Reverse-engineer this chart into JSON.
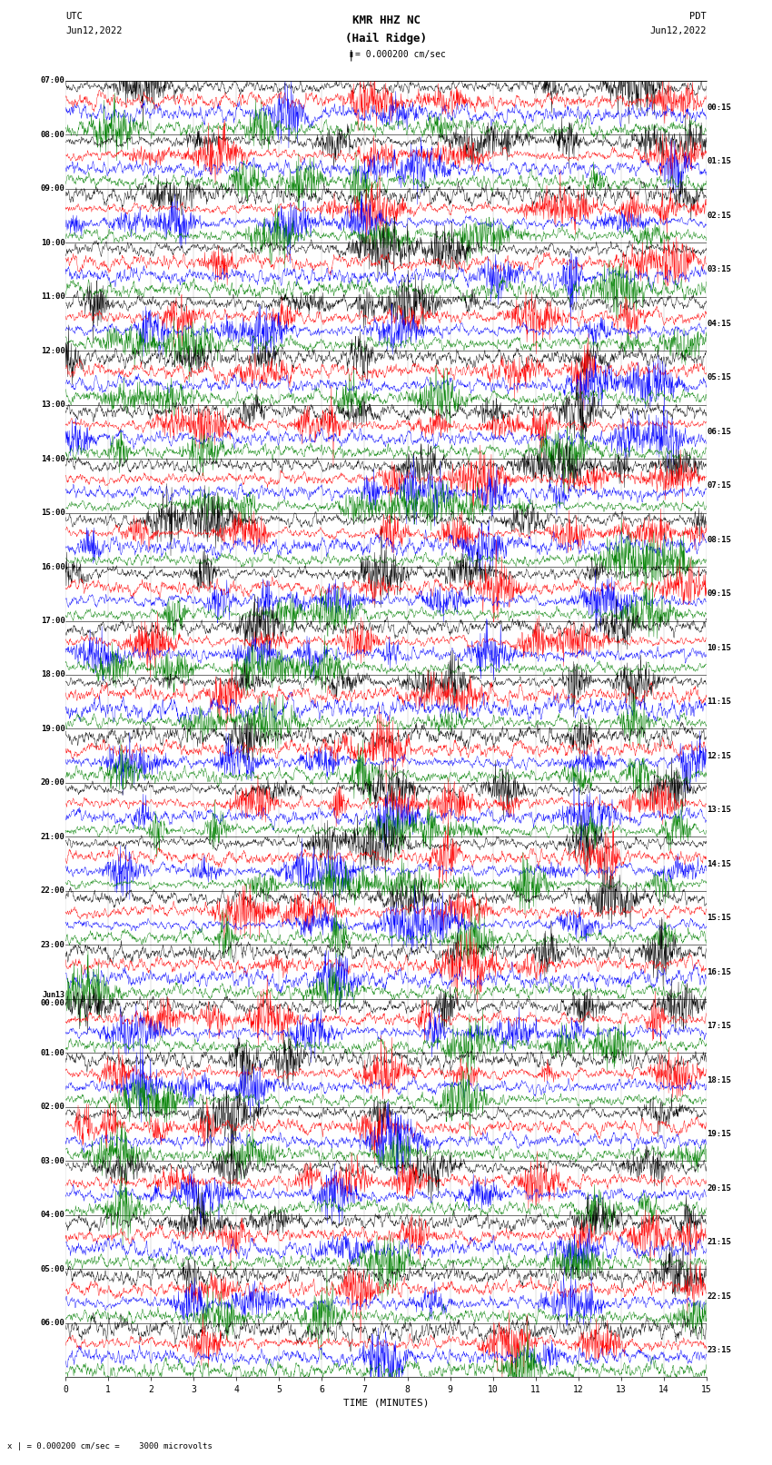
{
  "title_line1": "KMR HHZ NC",
  "title_line2": "(Hail Ridge)",
  "scale_label": "= 0.000200 cm/sec",
  "bottom_label": "x | = 0.000200 cm/sec =    3000 microvolts",
  "utc_label": "UTC",
  "date_label": "Jun12,2022",
  "pdt_label": "PDT",
  "pdt_date_label": "Jun12,2022",
  "xlabel": "TIME (MINUTES)",
  "colors": [
    "black",
    "red",
    "blue",
    "green"
  ],
  "left_times": [
    "07:00",
    "08:00",
    "09:00",
    "10:00",
    "11:00",
    "12:00",
    "13:00",
    "14:00",
    "15:00",
    "16:00",
    "17:00",
    "18:00",
    "19:00",
    "20:00",
    "21:00",
    "22:00",
    "23:00",
    "Jun13\n00:00",
    "01:00",
    "02:00",
    "03:00",
    "04:00",
    "05:00",
    "06:00"
  ],
  "right_times": [
    "00:15",
    "01:15",
    "02:15",
    "03:15",
    "04:15",
    "05:15",
    "06:15",
    "07:15",
    "08:15",
    "09:15",
    "10:15",
    "11:15",
    "12:15",
    "13:15",
    "14:15",
    "15:15",
    "16:15",
    "17:15",
    "18:15",
    "19:15",
    "20:15",
    "21:15",
    "22:15",
    "23:15"
  ],
  "xmin": 0,
  "xmax": 15,
  "xticks": [
    0,
    1,
    2,
    3,
    4,
    5,
    6,
    7,
    8,
    9,
    10,
    11,
    12,
    13,
    14,
    15
  ],
  "background_color": "white",
  "trace_linewidth": 0.3,
  "fig_width": 8.5,
  "fig_height": 16.13,
  "num_hours": 24,
  "traces_per_hour": 4,
  "trace_amplitude": 0.38,
  "points_per_trace": 2000
}
